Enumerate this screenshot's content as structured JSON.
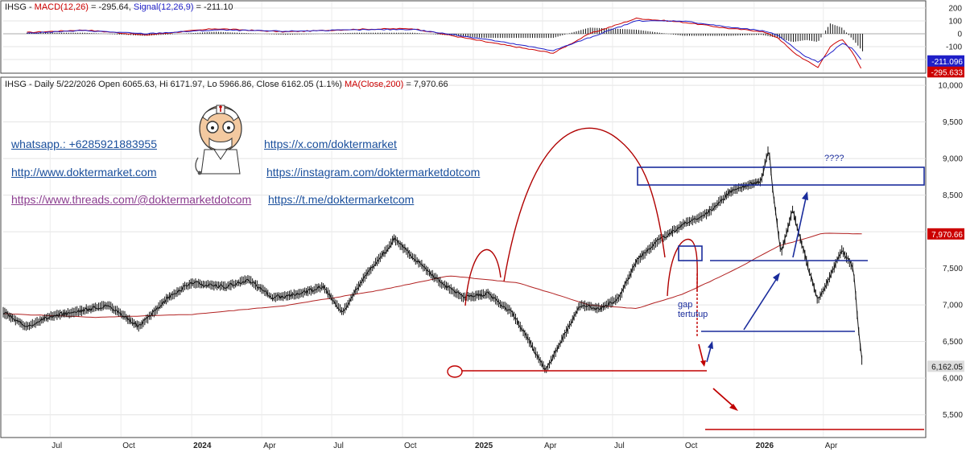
{
  "chart_data": [
    {
      "type": "line",
      "panel": "MACD",
      "label": "IHSG - MACD(12,26) = -295.64, Signal(12,26,9) = -211.10",
      "label_parts": {
        "prefix": "IHSG - ",
        "macd_name": "MACD(12,26)",
        "macd_value_text": " = -295.64, ",
        "signal_name": "Signal(12,26,9)",
        "signal_value_text": " = -211.10"
      },
      "ylim": [
        -300,
        250
      ],
      "yticks": [
        200,
        100,
        0,
        -100,
        -200
      ],
      "last_values": [
        {
          "name": "MACD(12,26)",
          "text": "-295.633",
          "value": -295.633,
          "color": "#cc0000"
        },
        {
          "name": "Signal(12,26,9)",
          "text": "-211.096",
          "value": -211.096,
          "color": "#1f1fc8"
        }
      ],
      "series": [
        {
          "name": "MACD(12,26)",
          "color": "#cc0000",
          "x": [
            "2023-06-01",
            "2023-08-15",
            "2023-11-01",
            "2024-02-01",
            "2024-05-01",
            "2024-08-01",
            "2024-10-15",
            "2025-01-15",
            "2025-03-15",
            "2025-04-15",
            "2025-06-01",
            "2025-08-01",
            "2025-10-01",
            "2025-12-01",
            "2026-01-10",
            "2026-02-01",
            "2026-02-20",
            "2026-03-10",
            "2026-03-25",
            "2026-04-10",
            "2026-04-25",
            "2026-05-10",
            "2026-05-22"
          ],
          "values": [
            10,
            30,
            -10,
            40,
            15,
            35,
            40,
            -60,
            -120,
            -150,
            0,
            120,
            90,
            40,
            20,
            -30,
            -140,
            -210,
            -260,
            -100,
            -40,
            -150,
            -296
          ]
        },
        {
          "name": "Signal(12,26,9)",
          "color": "#1f1fc8",
          "x": [
            "2023-06-01",
            "2023-08-15",
            "2023-11-01",
            "2024-02-01",
            "2024-05-01",
            "2024-08-01",
            "2024-10-15",
            "2025-01-15",
            "2025-03-15",
            "2025-04-15",
            "2025-06-01",
            "2025-08-01",
            "2025-10-01",
            "2025-12-01",
            "2026-01-10",
            "2026-02-01",
            "2026-02-20",
            "2026-03-10",
            "2026-03-25",
            "2026-04-10",
            "2026-04-25",
            "2026-05-10",
            "2026-05-22"
          ],
          "values": [
            5,
            25,
            0,
            30,
            20,
            30,
            35,
            -40,
            -100,
            -130,
            -30,
            100,
            100,
            50,
            25,
            -10,
            -100,
            -180,
            -220,
            -150,
            -70,
            -120,
            -211
          ]
        }
      ]
    },
    {
      "type": "line",
      "panel": "Price",
      "label": "IHSG - Daily 5/22/2026 Open 6065.63, Hi 6171.97, Lo 5966.86, Close 6162.05 (1.1%) MA(Close,200) = 7,970.66",
      "label_parts": {
        "prefix": "IHSG - Daily 5/22/2026 Open 6065.63, Hi 6171.97, Lo 5966.86, Close 6162.05 (1.1%) ",
        "ma_name": "MA(Close,200)",
        "ma_value_text": " = 7,970.66"
      },
      "ylim": [
        5200,
        10100
      ],
      "yticks": [
        "10,000",
        "9,500",
        "9,000",
        "8,500",
        "8,000",
        "7,500",
        "7,000",
        "6,500",
        "6,000",
        "5,500"
      ],
      "ytick_values": [
        10000,
        9500,
        9000,
        8500,
        8000,
        7500,
        7000,
        6500,
        6000,
        5500
      ],
      "last_values": [
        {
          "name": "Close",
          "text": "6,162.05",
          "value": 6162.05,
          "color": "#dddddd"
        },
        {
          "name": "MA(Close,200)",
          "text": "7,970.66",
          "value": 7970.66,
          "color": "#cc0000"
        }
      ],
      "xticks": [
        {
          "date": "2023-07-01",
          "label": "Jul",
          "bold": false
        },
        {
          "date": "2023-10-01",
          "label": "Oct",
          "bold": false
        },
        {
          "date": "2024-01-01",
          "label": "2024",
          "bold": true
        },
        {
          "date": "2024-04-01",
          "label": "Apr",
          "bold": false
        },
        {
          "date": "2024-07-01",
          "label": "Jul",
          "bold": false
        },
        {
          "date": "2024-10-01",
          "label": "Oct",
          "bold": false
        },
        {
          "date": "2025-01-01",
          "label": "2025",
          "bold": true
        },
        {
          "date": "2025-04-01",
          "label": "Apr",
          "bold": false
        },
        {
          "date": "2025-07-01",
          "label": "Jul",
          "bold": false
        },
        {
          "date": "2025-10-01",
          "label": "Oct",
          "bold": false
        },
        {
          "date": "2026-01-01",
          "label": "2026",
          "bold": true
        },
        {
          "date": "2026-04-01",
          "label": "Apr",
          "bold": false
        }
      ],
      "series": [
        {
          "name": "Close",
          "color": "#111111",
          "x": [
            "2023-05-01",
            "2023-06-01",
            "2023-07-01",
            "2023-08-01",
            "2023-09-15",
            "2023-10-25",
            "2023-12-01",
            "2024-01-01",
            "2024-02-15",
            "2024-03-15",
            "2024-04-15",
            "2024-05-20",
            "2024-06-20",
            "2024-07-15",
            "2024-08-10",
            "2024-09-10",
            "2024-09-20",
            "2024-10-20",
            "2024-11-20",
            "2024-12-20",
            "2025-01-20",
            "2025-02-20",
            "2025-03-15",
            "2025-04-05",
            "2025-04-25",
            "2025-05-20",
            "2025-06-15",
            "2025-07-10",
            "2025-08-01",
            "2025-09-01",
            "2025-10-01",
            "2025-11-01",
            "2025-12-01",
            "2026-01-10",
            "2026-01-20",
            "2026-01-25",
            "2026-02-05",
            "2026-02-20",
            "2026-03-10",
            "2026-03-25",
            "2026-04-10",
            "2026-04-25",
            "2026-05-10",
            "2026-05-18",
            "2026-05-22"
          ],
          "values": [
            6900,
            6700,
            6850,
            6900,
            7000,
            6700,
            7100,
            7300,
            7250,
            7350,
            7100,
            7150,
            7250,
            6900,
            7350,
            7750,
            7900,
            7600,
            7300,
            7100,
            7150,
            6900,
            6500,
            6100,
            6500,
            7000,
            6950,
            7100,
            7600,
            7900,
            8100,
            8250,
            8550,
            8700,
            9150,
            8600,
            7700,
            8300,
            7600,
            7050,
            7400,
            7750,
            7500,
            6500,
            6162
          ]
        },
        {
          "name": "MA(Close,200)",
          "color": "#b22222",
          "x": [
            "2023-05-01",
            "2023-09-01",
            "2024-01-01",
            "2024-05-01",
            "2024-09-01",
            "2024-12-01",
            "2025-03-01",
            "2025-06-01",
            "2025-08-01",
            "2025-10-01",
            "2025-12-01",
            "2026-02-01",
            "2026-04-01",
            "2026-05-22"
          ],
          "values": [
            6880,
            6830,
            6870,
            6990,
            7200,
            7400,
            7300,
            7000,
            6950,
            7150,
            7450,
            7800,
            7980,
            7970
          ]
        }
      ],
      "annotations": {
        "question": "????",
        "gap_text_1": "gap",
        "gap_text_2": "tertutup"
      },
      "links": [
        {
          "text": "whatsapp.: +6285921883955"
        },
        {
          "text": "https://x.com/doktermarket"
        },
        {
          "text": "http://www.doktermarket.com"
        },
        {
          "text": "https://instagram.com/doktermarketdotcom"
        },
        {
          "text": "https://www.threads.com/@doktermarketdotcom"
        },
        {
          "text": "https://t.me/doktermarketcom"
        }
      ]
    }
  ]
}
